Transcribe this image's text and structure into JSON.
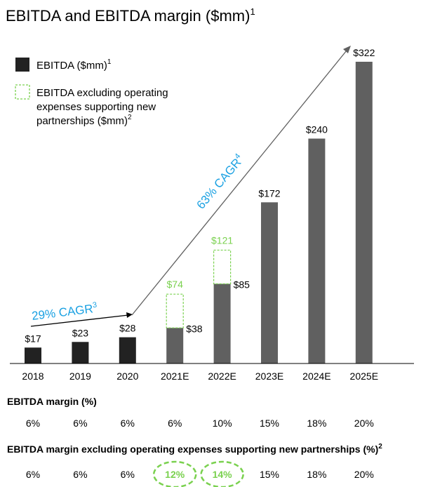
{
  "title": "EBITDA and EBITDA margin ($mm)",
  "title_sup": "1",
  "colors": {
    "historical": "#222222",
    "forecast": "#606060",
    "adjusted": "#7AD14F",
    "cagr": "#1BA1E2",
    "text": "#000000"
  },
  "legend": {
    "solid": {
      "label": "EBITDA ($mm)",
      "sup": "1"
    },
    "dashed": {
      "lines": [
        "EBITDA excluding operating",
        "expenses supporting new",
        "partnerships ($mm)"
      ],
      "sup": "2"
    }
  },
  "cagr": {
    "short": {
      "label": "29% CAGR",
      "sup": "3"
    },
    "long": {
      "label": "63% CAGR",
      "sup": "4"
    }
  },
  "chart_data": {
    "type": "bar",
    "categories": [
      "2018",
      "2019",
      "2020",
      "2021E",
      "2022E",
      "2023E",
      "2024E",
      "2025E"
    ],
    "series": [
      {
        "name": "EBITDA ($mm)",
        "values": [
          17,
          23,
          28,
          38,
          85,
          172,
          240,
          322
        ],
        "labels": [
          "$17",
          "$23",
          "$28",
          "$38",
          "$85",
          "$172",
          "$240",
          "$322"
        ]
      },
      {
        "name": "EBITDA excluding operating expenses supporting new partnerships ($mm)",
        "values": [
          null,
          null,
          null,
          74,
          121,
          null,
          null,
          null
        ],
        "labels": [
          "",
          "",
          "",
          "$74",
          "$121",
          "",
          "",
          ""
        ]
      }
    ],
    "forecast_start_index": 3,
    "ylim": [
      0,
      322
    ]
  },
  "margin_table": {
    "title": "EBITDA margin (%)",
    "values": [
      "6%",
      "6%",
      "6%",
      "6%",
      "10%",
      "15%",
      "18%",
      "20%"
    ]
  },
  "adjusted_margin_table": {
    "title": "EBITDA margin excluding operating expenses supporting new partnerships (%)",
    "sup": "2",
    "values": [
      "6%",
      "6%",
      "6%",
      "12%",
      "14%",
      "15%",
      "18%",
      "20%"
    ],
    "highlighted": [
      3,
      4
    ]
  }
}
